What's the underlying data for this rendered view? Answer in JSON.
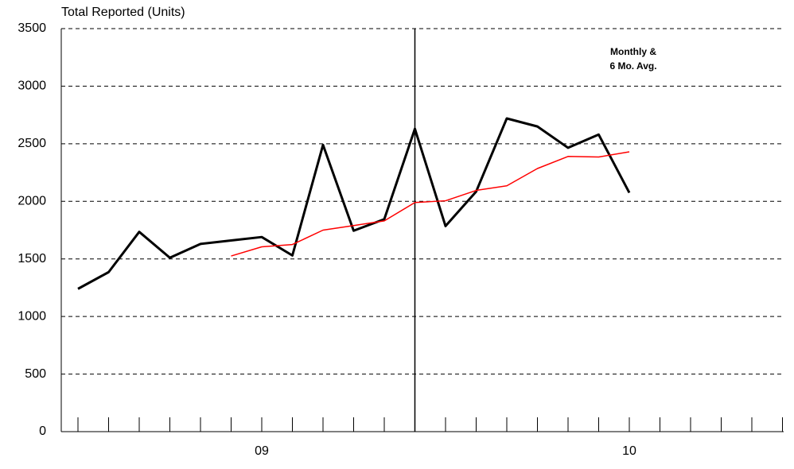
{
  "chart_data": {
    "type": "line",
    "ylabel": "Total Reported (Units)",
    "annotation": [
      "Monthly &",
      "6 Mo. Avg."
    ],
    "categories": [
      null,
      null,
      null,
      null,
      null,
      null,
      "09",
      null,
      null,
      null,
      null,
      null,
      null,
      null,
      null,
      null,
      null,
      null,
      "10",
      null,
      null,
      null,
      null,
      null
    ],
    "series": [
      {
        "color": "#000000",
        "values": [
          1240,
          1385,
          1735,
          1510,
          1630,
          1660,
          1690,
          1530,
          2490,
          1745,
          1845,
          2630,
          1785,
          2085,
          2720,
          2650,
          2465,
          2580,
          2075,
          null,
          null,
          null,
          null,
          null
        ]
      },
      {
        "color": "#ff0000",
        "values": [
          null,
          null,
          null,
          null,
          null,
          1525,
          1605,
          1625,
          1750,
          1790,
          1830,
          1990,
          2005,
          2095,
          2135,
          2285,
          2390,
          2385,
          2430,
          null,
          null,
          null,
          null,
          null
        ]
      }
    ],
    "ylim": [
      0,
      3500
    ],
    "yticks": [
      0,
      500,
      1000,
      1500,
      2000,
      2500,
      3000,
      3500
    ],
    "grid": true,
    "vline": 11
  }
}
